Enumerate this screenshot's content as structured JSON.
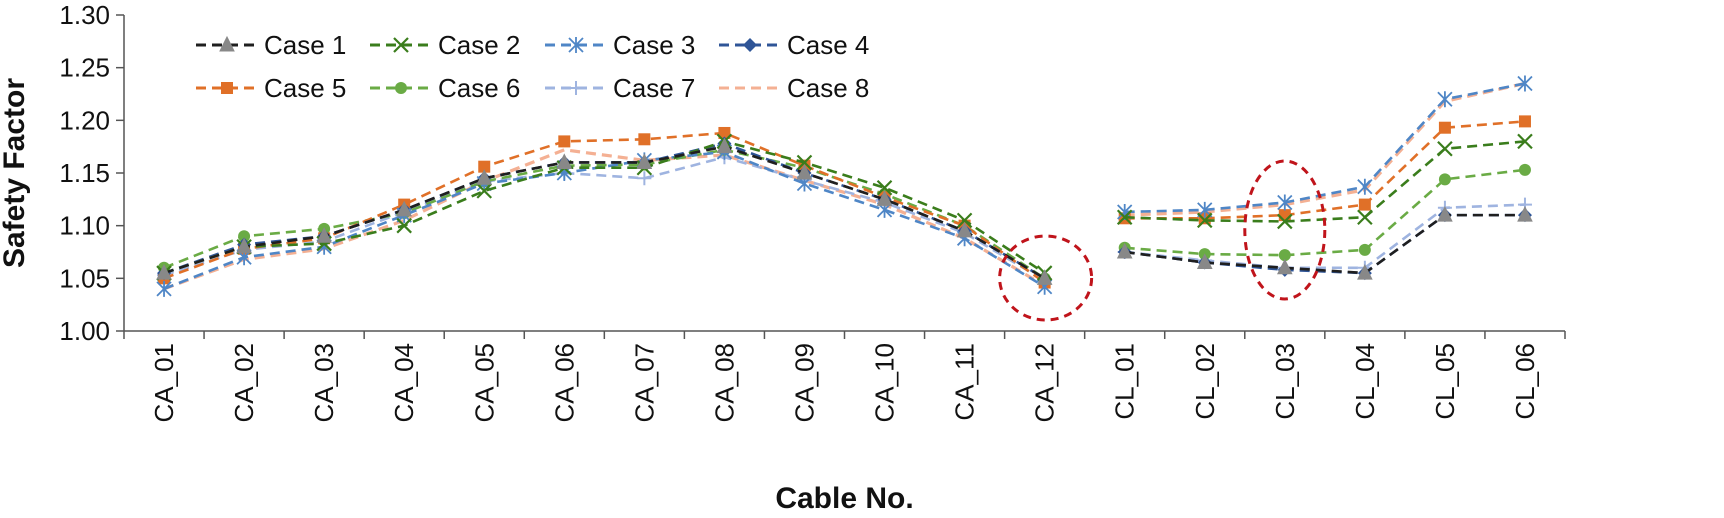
{
  "chart_data": {
    "type": "line",
    "xlabel": "Cable No.",
    "ylabel": "Safety Factor",
    "ylim": [
      1.0,
      1.3
    ],
    "ytick_step": 0.05,
    "yticks": [
      "1.00",
      "1.05",
      "1.10",
      "1.15",
      "1.20",
      "1.25",
      "1.30"
    ],
    "grid": false,
    "legend_position": "top-left",
    "categories": [
      "CA_01",
      "CA_02",
      "CA_03",
      "CA_04",
      "CA_05",
      "CA_06",
      "CA_07",
      "CA_08",
      "CA_09",
      "CA_10",
      "CA_11",
      "CA_12",
      "CL_01",
      "CL_02",
      "CL_03",
      "CL_04",
      "CL_05",
      "CL_06"
    ],
    "segment_break_after": "CA_12",
    "highlight_circles": [
      "CA_12",
      "CL_03"
    ],
    "series": [
      {
        "name": "Case 1",
        "color": "#1f1f1f",
        "marker": "triangle",
        "values": [
          1.055,
          1.08,
          1.09,
          1.115,
          1.145,
          1.16,
          1.16,
          1.175,
          1.15,
          1.125,
          1.095,
          1.05,
          1.075,
          1.065,
          1.06,
          1.055,
          1.11,
          1.11
        ]
      },
      {
        "name": "Case 2",
        "color": "#3a7d1c",
        "marker": "x",
        "values": [
          1.055,
          1.08,
          1.083,
          1.1,
          1.133,
          1.155,
          1.155,
          1.18,
          1.16,
          1.136,
          1.105,
          1.055,
          1.108,
          1.105,
          1.104,
          1.108,
          1.173,
          1.18
        ]
      },
      {
        "name": "Case 3",
        "color": "#4f86c6",
        "marker": "asterisk",
        "values": [
          1.04,
          1.07,
          1.08,
          1.11,
          1.14,
          1.15,
          1.162,
          1.17,
          1.14,
          1.115,
          1.088,
          1.042,
          1.113,
          1.115,
          1.122,
          1.137,
          1.22,
          1.235
        ]
      },
      {
        "name": "Case 4",
        "color": "#2f5597",
        "marker": "diamond",
        "values": [
          1.055,
          1.082,
          1.09,
          1.115,
          1.145,
          1.16,
          1.16,
          1.178,
          1.15,
          1.125,
          1.095,
          1.05,
          1.075,
          1.065,
          1.058,
          1.055,
          1.11,
          1.11
        ]
      },
      {
        "name": "Case 5",
        "color": "#e07028",
        "marker": "square",
        "values": [
          1.05,
          1.078,
          1.088,
          1.12,
          1.156,
          1.18,
          1.182,
          1.188,
          1.157,
          1.127,
          1.1,
          1.046,
          1.107,
          1.107,
          1.11,
          1.12,
          1.193,
          1.199
        ]
      },
      {
        "name": "Case 6",
        "color": "#6aab45",
        "marker": "circle",
        "values": [
          1.06,
          1.09,
          1.097,
          1.112,
          1.142,
          1.157,
          1.158,
          1.172,
          1.155,
          1.13,
          1.1,
          1.05,
          1.079,
          1.073,
          1.072,
          1.077,
          1.144,
          1.153
        ]
      },
      {
        "name": "Case 7",
        "color": "#9fb4e0",
        "marker": "plus",
        "values": [
          1.053,
          1.077,
          1.085,
          1.113,
          1.142,
          1.15,
          1.145,
          1.165,
          1.143,
          1.122,
          1.093,
          1.048,
          1.075,
          1.067,
          1.06,
          1.06,
          1.117,
          1.12
        ]
      },
      {
        "name": "Case 8",
        "color": "#f4b093",
        "marker": "none",
        "values": [
          1.04,
          1.068,
          1.078,
          1.105,
          1.142,
          1.172,
          1.162,
          1.167,
          1.143,
          1.12,
          1.088,
          1.043,
          1.11,
          1.113,
          1.12,
          1.134,
          1.218,
          1.235
        ]
      }
    ]
  }
}
